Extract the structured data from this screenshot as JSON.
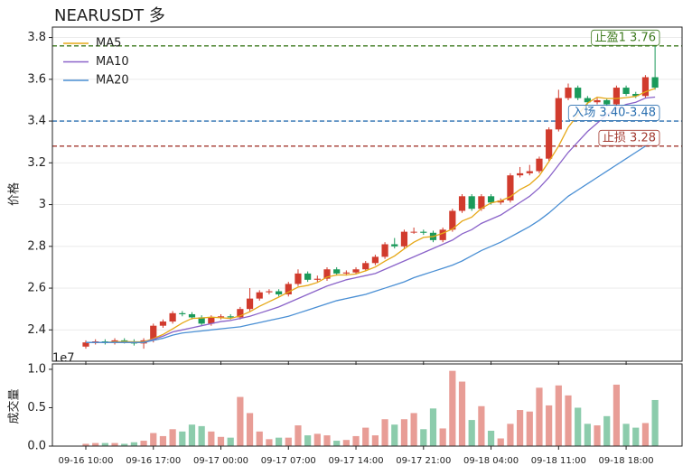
{
  "chart_data": [
    {
      "type": "candlestick",
      "title": "NEARUSDT  多",
      "ylabel": "价格",
      "ylim": [
        2.25,
        3.85
      ],
      "yticks": [
        2.4,
        2.6,
        2.8,
        3.0,
        3.2,
        3.4,
        3.6,
        3.8
      ],
      "grid": true,
      "legend": "upper left",
      "up_color": "#d13b2d",
      "down_color": "#1a9a5a",
      "open": [
        2.32,
        2.34,
        2.345,
        2.34,
        2.35,
        2.345,
        2.335,
        2.35,
        2.42,
        2.44,
        2.48,
        2.475,
        2.46,
        2.43,
        2.46,
        2.465,
        2.46,
        2.5,
        2.55,
        2.58,
        2.585,
        2.57,
        2.62,
        2.67,
        2.64,
        2.645,
        2.69,
        2.67,
        2.675,
        2.69,
        2.72,
        2.75,
        2.81,
        2.8,
        2.87,
        2.87,
        2.865,
        2.83,
        2.88,
        2.97,
        3.04,
        2.98,
        3.04,
        3.01,
        3.02,
        3.14,
        3.15,
        3.16,
        3.22,
        3.36,
        3.51,
        3.56,
        3.51,
        3.49,
        3.5,
        3.48,
        3.56,
        3.53,
        3.52,
        3.61
      ],
      "high": [
        2.35,
        2.355,
        2.355,
        2.36,
        2.36,
        2.355,
        2.36,
        2.43,
        2.45,
        2.49,
        2.49,
        2.485,
        2.47,
        2.47,
        2.475,
        2.475,
        2.51,
        2.6,
        2.59,
        2.595,
        2.595,
        2.63,
        2.69,
        2.68,
        2.66,
        2.7,
        2.7,
        2.685,
        2.7,
        2.73,
        2.76,
        2.82,
        2.84,
        2.88,
        2.89,
        2.88,
        2.875,
        2.89,
        2.98,
        3.05,
        3.05,
        3.05,
        3.05,
        3.03,
        3.15,
        3.18,
        3.19,
        3.23,
        3.37,
        3.55,
        3.58,
        3.57,
        3.52,
        3.51,
        3.51,
        3.57,
        3.57,
        3.54,
        3.62,
        3.76
      ],
      "low": [
        2.31,
        2.33,
        2.33,
        2.33,
        2.335,
        2.325,
        2.31,
        2.34,
        2.41,
        2.43,
        2.465,
        2.45,
        2.42,
        2.42,
        2.45,
        2.45,
        2.45,
        2.49,
        2.54,
        2.57,
        2.56,
        2.56,
        2.61,
        2.63,
        2.63,
        2.635,
        2.66,
        2.66,
        2.665,
        2.68,
        2.71,
        2.74,
        2.79,
        2.79,
        2.86,
        2.855,
        2.82,
        2.82,
        2.87,
        2.96,
        2.97,
        2.97,
        3.0,
        3.0,
        3.01,
        3.13,
        3.14,
        3.15,
        3.21,
        3.35,
        3.5,
        3.5,
        3.48,
        3.48,
        3.47,
        3.47,
        3.52,
        3.51,
        3.51,
        3.55
      ],
      "close": [
        2.34,
        2.345,
        2.34,
        2.35,
        2.345,
        2.335,
        2.35,
        2.42,
        2.44,
        2.48,
        2.475,
        2.46,
        2.43,
        2.46,
        2.465,
        2.46,
        2.5,
        2.55,
        2.58,
        2.585,
        2.57,
        2.62,
        2.67,
        2.64,
        2.645,
        2.69,
        2.67,
        2.675,
        2.69,
        2.72,
        2.75,
        2.81,
        2.8,
        2.87,
        2.87,
        2.865,
        2.83,
        2.88,
        2.97,
        3.04,
        2.98,
        3.04,
        3.01,
        3.02,
        3.14,
        3.15,
        3.16,
        3.22,
        3.36,
        3.51,
        3.56,
        3.51,
        3.49,
        3.5,
        3.48,
        3.56,
        3.53,
        3.52,
        3.61,
        3.56
      ],
      "series": [
        {
          "name": "MA5",
          "color": "#e6a817",
          "values": [
            2.34,
            2.34,
            2.34,
            2.343,
            2.344,
            2.343,
            2.343,
            2.358,
            2.378,
            2.405,
            2.433,
            2.455,
            2.457,
            2.461,
            2.458,
            2.455,
            2.467,
            2.487,
            2.513,
            2.535,
            2.557,
            2.581,
            2.605,
            2.613,
            2.627,
            2.653,
            2.663,
            2.663,
            2.668,
            2.683,
            2.701,
            2.729,
            2.754,
            2.788,
            2.82,
            2.843,
            2.847,
            2.863,
            2.883,
            2.921,
            2.94,
            2.982,
            3.008,
            3.018,
            3.038,
            3.072,
            3.096,
            3.138,
            3.206,
            3.28,
            3.37,
            3.43,
            3.486,
            3.514,
            3.508,
            3.508,
            3.512,
            3.518,
            3.54,
            3.556
          ]
        },
        {
          "name": "MA10",
          "color": "#8a63c9",
          "values": [
            2.34,
            2.34,
            2.34,
            2.34,
            2.34,
            2.34,
            2.34,
            2.355,
            2.37,
            2.39,
            2.4,
            2.41,
            2.42,
            2.43,
            2.44,
            2.445,
            2.455,
            2.465,
            2.48,
            2.495,
            2.51,
            2.53,
            2.55,
            2.57,
            2.59,
            2.61,
            2.625,
            2.64,
            2.65,
            2.66,
            2.67,
            2.69,
            2.71,
            2.73,
            2.75,
            2.77,
            2.79,
            2.81,
            2.83,
            2.86,
            2.88,
            2.91,
            2.93,
            2.95,
            2.98,
            3.01,
            3.04,
            3.08,
            3.13,
            3.19,
            3.25,
            3.3,
            3.35,
            3.39,
            3.43,
            3.46,
            3.48,
            3.49,
            3.51,
            3.515
          ]
        },
        {
          "name": "MA20",
          "color": "#4a8fd4",
          "values": [
            2.34,
            2.34,
            2.34,
            2.34,
            2.34,
            2.34,
            2.34,
            2.35,
            2.36,
            2.375,
            2.385,
            2.39,
            2.395,
            2.4,
            2.405,
            2.41,
            2.415,
            2.425,
            2.435,
            2.445,
            2.455,
            2.465,
            2.48,
            2.495,
            2.51,
            2.525,
            2.54,
            2.55,
            2.56,
            2.57,
            2.585,
            2.6,
            2.615,
            2.63,
            2.65,
            2.665,
            2.68,
            2.695,
            2.71,
            2.73,
            2.755,
            2.78,
            2.8,
            2.82,
            2.845,
            2.87,
            2.895,
            2.925,
            2.96,
            3.0,
            3.04,
            3.07,
            3.1,
            3.13,
            3.16,
            3.19,
            3.22,
            3.25,
            3.28,
            3.32
          ]
        }
      ],
      "lines": [
        {
          "label": "止盈1 3.76",
          "value": 3.76,
          "color": "#3d7a1e"
        },
        {
          "label": "入场 3.40-3.48",
          "value": 3.4,
          "color": "#2a6fb0"
        },
        {
          "label": "止损 3.28",
          "value": 3.28,
          "color": "#a33a30"
        }
      ]
    },
    {
      "type": "bar",
      "ylabel": "成交量",
      "offset_label": "1e7",
      "ylim": [
        0,
        1.07
      ],
      "yticks": [
        {
          "value": 0,
          "label": "0.0"
        },
        {
          "value": 0.5,
          "label": "0.5"
        },
        {
          "value": 1,
          "label": "1.0"
        }
      ],
      "categories": [
        "09-16 10:00",
        null,
        null,
        null,
        null,
        null,
        null,
        "09-16 17:00",
        null,
        null,
        null,
        null,
        null,
        null,
        "09-17 00:00",
        null,
        null,
        null,
        null,
        null,
        null,
        "09-17 07:00",
        null,
        null,
        null,
        null,
        null,
        null,
        "09-17 14:00",
        null,
        null,
        null,
        null,
        null,
        null,
        "09-17 21:00",
        null,
        null,
        null,
        null,
        null,
        null,
        "09-18 04:00",
        null,
        null,
        null,
        null,
        null,
        null,
        "09-18 11:00",
        null,
        null,
        null,
        null,
        null,
        null,
        "09-18 18:00",
        null,
        null,
        null
      ],
      "values": [
        0.03,
        0.04,
        0.04,
        0.04,
        0.03,
        0.05,
        0.07,
        0.17,
        0.13,
        0.22,
        0.19,
        0.28,
        0.26,
        0.19,
        0.12,
        0.11,
        0.64,
        0.43,
        0.19,
        0.09,
        0.11,
        0.11,
        0.27,
        0.14,
        0.16,
        0.14,
        0.07,
        0.08,
        0.13,
        0.24,
        0.14,
        0.35,
        0.28,
        0.35,
        0.43,
        0.22,
        0.49,
        0.23,
        0.98,
        0.84,
        0.34,
        0.52,
        0.2,
        0.1,
        0.29,
        0.47,
        0.45,
        0.76,
        0.53,
        0.79,
        0.66,
        0.5,
        0.29,
        0.27,
        0.39,
        0.8,
        0.29,
        0.24,
        0.3,
        0.6
      ]
    }
  ]
}
